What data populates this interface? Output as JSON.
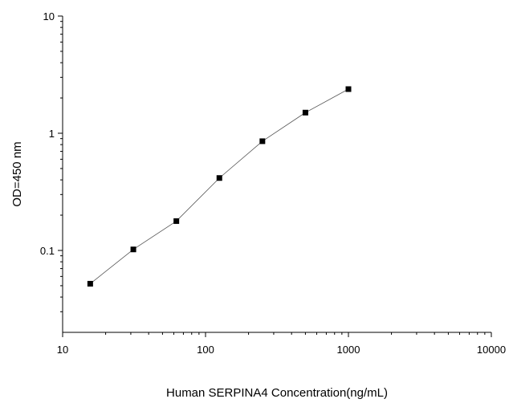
{
  "chart_data": {
    "type": "scatter",
    "title": "",
    "xlabel": "Human SERPINA4 Concentration(ng/mL)",
    "ylabel": "OD=450 nm",
    "xscale": "log",
    "yscale": "log",
    "xlim": [
      10,
      10000
    ],
    "ylim": [
      0.02,
      10
    ],
    "x_ticks": [
      10,
      100,
      1000,
      10000
    ],
    "x_tick_labels": [
      "10",
      "100",
      "1000",
      "10000"
    ],
    "y_ticks": [
      0.1,
      1,
      10
    ],
    "y_tick_labels": [
      "0.1",
      "1",
      "10"
    ],
    "grid": false,
    "legend": "none",
    "marker": "square",
    "connect_points": true,
    "series": [
      {
        "x": [
          15.6,
          31.25,
          62.5,
          125,
          250,
          500,
          1000
        ],
        "y": [
          0.052,
          0.102,
          0.178,
          0.415,
          0.855,
          1.5,
          2.38
        ]
      }
    ],
    "colors": {
      "marker": "#000000",
      "line": "#555555",
      "axis": "#000000"
    }
  }
}
